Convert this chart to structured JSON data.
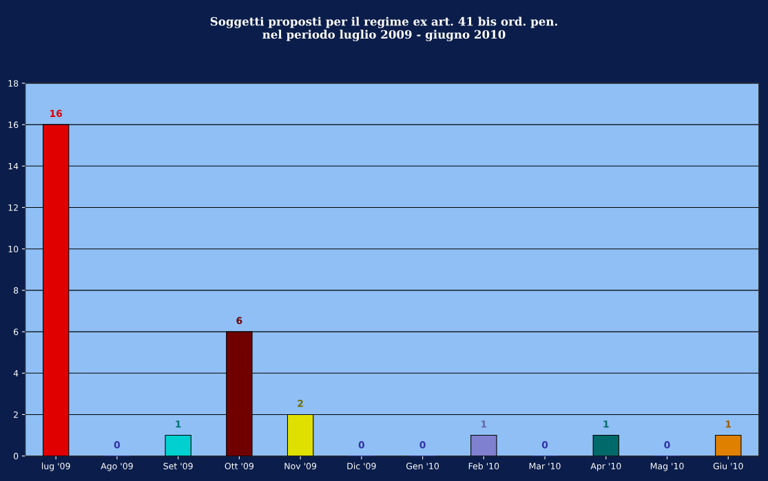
{
  "chart_data": {
    "type": "bar",
    "title": "Soggetti proposti per il regime ex art. 41 bis ord. pen.\nnel periodo luglio 2009 - giugno 2010",
    "categories": [
      "lug '09",
      "Ago '09",
      "Set '09",
      "Ott '09",
      "Nov '09",
      "Dic '09",
      "Gen '10",
      "Feb '10",
      "Mar '10",
      "Apr '10",
      "Mag '10",
      "Giu '10"
    ],
    "values": [
      16,
      0,
      1,
      6,
      2,
      0,
      0,
      1,
      0,
      1,
      0,
      1
    ],
    "colors": [
      "#e00000",
      "#3535a5",
      "#00d0d0",
      "#700000",
      "#e0e000",
      "#3535a5",
      "#3535a5",
      "#8080d0",
      "#3535a5",
      "#006a6a",
      "#3535a5",
      "#e08000"
    ],
    "ylim": [
      0,
      18
    ],
    "yticks": [
      0,
      2,
      4,
      6,
      8,
      10,
      12,
      14,
      16,
      18
    ],
    "grid": "y",
    "data_labels": true
  }
}
